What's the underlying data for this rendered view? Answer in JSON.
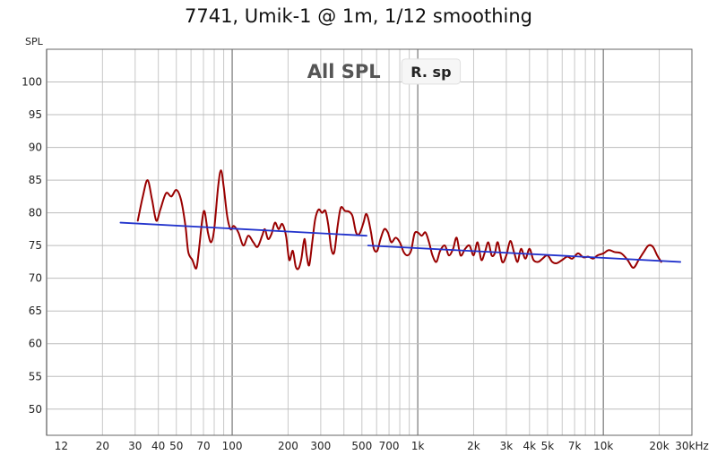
{
  "chart_data": {
    "type": "line",
    "title": "7741, Umik-1 @ 1m, 1/12 smoothing",
    "ylabel": "SPL",
    "xlabel": "",
    "x_scale": "log",
    "xlim": [
      10,
      30000
    ],
    "ylim": [
      46,
      105
    ],
    "grid": true,
    "x_ticks": [
      {
        "value": 12,
        "label": "12"
      },
      {
        "value": 20,
        "label": "20"
      },
      {
        "value": 30,
        "label": "30"
      },
      {
        "value": 40,
        "label": "40"
      },
      {
        "value": 50,
        "label": "50"
      },
      {
        "value": 70,
        "label": "70"
      },
      {
        "value": 100,
        "label": "100"
      },
      {
        "value": 200,
        "label": "200"
      },
      {
        "value": 300,
        "label": "300"
      },
      {
        "value": 500,
        "label": "500"
      },
      {
        "value": 700,
        "label": "700"
      },
      {
        "value": 1000,
        "label": "1k"
      },
      {
        "value": 2000,
        "label": "2k"
      },
      {
        "value": 3000,
        "label": "3k"
      },
      {
        "value": 4000,
        "label": "4k"
      },
      {
        "value": 5000,
        "label": "5k"
      },
      {
        "value": 7000,
        "label": "7k"
      },
      {
        "value": 10000,
        "label": "10k"
      },
      {
        "value": 20000,
        "label": "20k"
      },
      {
        "value": 30000,
        "label": "30kHz"
      }
    ],
    "y_ticks": [
      50,
      55,
      60,
      65,
      70,
      75,
      80,
      85,
      90,
      95,
      100
    ],
    "annotations": [
      {
        "text": "All SPL",
        "x": 400,
        "y": 101.6,
        "style": "large"
      },
      {
        "text": "R. sp",
        "x": 820,
        "y": 101.6,
        "style": "box"
      }
    ],
    "series": [
      {
        "color": "#990000",
        "points": [
          [
            31,
            78.8
          ],
          [
            33,
            82.5
          ],
          [
            35,
            85.0
          ],
          [
            37,
            82.0
          ],
          [
            39,
            78.8
          ],
          [
            41,
            80.5
          ],
          [
            44,
            83.0
          ],
          [
            47,
            82.5
          ],
          [
            50,
            83.5
          ],
          [
            53,
            82.0
          ],
          [
            56,
            78.0
          ],
          [
            58,
            74.0
          ],
          [
            61,
            72.8
          ],
          [
            64,
            71.5
          ],
          [
            66,
            74.0
          ],
          [
            69,
            79.0
          ],
          [
            71,
            80.2
          ],
          [
            74,
            77.0
          ],
          [
            77,
            75.5
          ],
          [
            80,
            77.5
          ],
          [
            84,
            84.0
          ],
          [
            87,
            86.5
          ],
          [
            90,
            84.0
          ],
          [
            94,
            79.5
          ],
          [
            98,
            77.5
          ],
          [
            102,
            78.0
          ],
          [
            108,
            77.0
          ],
          [
            115,
            75.0
          ],
          [
            122,
            76.5
          ],
          [
            130,
            75.5
          ],
          [
            137,
            74.8
          ],
          [
            145,
            76.5
          ],
          [
            150,
            77.5
          ],
          [
            156,
            76.0
          ],
          [
            163,
            76.8
          ],
          [
            170,
            78.5
          ],
          [
            178,
            77.5
          ],
          [
            186,
            78.3
          ],
          [
            195,
            76.5
          ],
          [
            203,
            72.8
          ],
          [
            212,
            74.2
          ],
          [
            220,
            71.8
          ],
          [
            228,
            71.5
          ],
          [
            236,
            73.0
          ],
          [
            245,
            76.0
          ],
          [
            252,
            73.5
          ],
          [
            260,
            72.0
          ],
          [
            270,
            75.5
          ],
          [
            280,
            79.0
          ],
          [
            292,
            80.5
          ],
          [
            305,
            80.0
          ],
          [
            318,
            80.3
          ],
          [
            330,
            78.0
          ],
          [
            342,
            74.5
          ],
          [
            355,
            74.0
          ],
          [
            370,
            78.0
          ],
          [
            385,
            80.8
          ],
          [
            405,
            80.3
          ],
          [
            425,
            80.2
          ],
          [
            445,
            79.5
          ],
          [
            465,
            77.0
          ],
          [
            485,
            76.8
          ],
          [
            510,
            78.5
          ],
          [
            525,
            79.8
          ],
          [
            540,
            79.2
          ],
          [
            560,
            77.0
          ],
          [
            580,
            74.5
          ],
          [
            605,
            74.2
          ],
          [
            630,
            76.0
          ],
          [
            660,
            77.5
          ],
          [
            690,
            77.0
          ],
          [
            720,
            75.5
          ],
          [
            760,
            76.2
          ],
          [
            800,
            75.5
          ],
          [
            840,
            74.0
          ],
          [
            880,
            73.5
          ],
          [
            920,
            74.2
          ],
          [
            960,
            76.8
          ],
          [
            1000,
            77.0
          ],
          [
            1050,
            76.5
          ],
          [
            1100,
            77.0
          ],
          [
            1150,
            75.5
          ],
          [
            1200,
            73.5
          ],
          [
            1260,
            72.5
          ],
          [
            1320,
            74.2
          ],
          [
            1400,
            75.0
          ],
          [
            1470,
            73.5
          ],
          [
            1550,
            74.5
          ],
          [
            1620,
            76.2
          ],
          [
            1700,
            73.5
          ],
          [
            1800,
            74.5
          ],
          [
            1900,
            75.0
          ],
          [
            2000,
            73.5
          ],
          [
            2100,
            75.5
          ],
          [
            2200,
            72.8
          ],
          [
            2300,
            74.0
          ],
          [
            2400,
            75.5
          ],
          [
            2500,
            73.5
          ],
          [
            2600,
            73.8
          ],
          [
            2700,
            75.5
          ],
          [
            2850,
            72.5
          ],
          [
            3000,
            73.5
          ],
          [
            3150,
            75.7
          ],
          [
            3300,
            74.0
          ],
          [
            3450,
            72.5
          ],
          [
            3600,
            74.5
          ],
          [
            3800,
            73.0
          ],
          [
            4000,
            74.5
          ],
          [
            4200,
            72.8
          ],
          [
            4450,
            72.5
          ],
          [
            4700,
            73.0
          ],
          [
            5000,
            73.5
          ],
          [
            5300,
            72.5
          ],
          [
            5600,
            72.3
          ],
          [
            6000,
            72.8
          ],
          [
            6400,
            73.3
          ],
          [
            6800,
            73.0
          ],
          [
            7300,
            73.8
          ],
          [
            7800,
            73.2
          ],
          [
            8300,
            73.3
          ],
          [
            8800,
            73.0
          ],
          [
            9300,
            73.5
          ],
          [
            10000,
            73.8
          ],
          [
            10700,
            74.3
          ],
          [
            11500,
            74.0
          ],
          [
            12500,
            73.8
          ],
          [
            13500,
            72.8
          ],
          [
            14500,
            71.6
          ],
          [
            15500,
            72.8
          ],
          [
            16500,
            74.0
          ],
          [
            17500,
            75.0
          ],
          [
            18500,
            74.8
          ],
          [
            19500,
            73.5
          ],
          [
            20500,
            72.5
          ]
        ]
      },
      {
        "color": "#2233cc",
        "points": [
          [
            25,
            78.5
          ],
          [
            530,
            76.5
          ]
        ]
      },
      {
        "color": "#2233cc",
        "points": [
          [
            540,
            75.0
          ],
          [
            26000,
            72.5
          ]
        ]
      }
    ]
  }
}
